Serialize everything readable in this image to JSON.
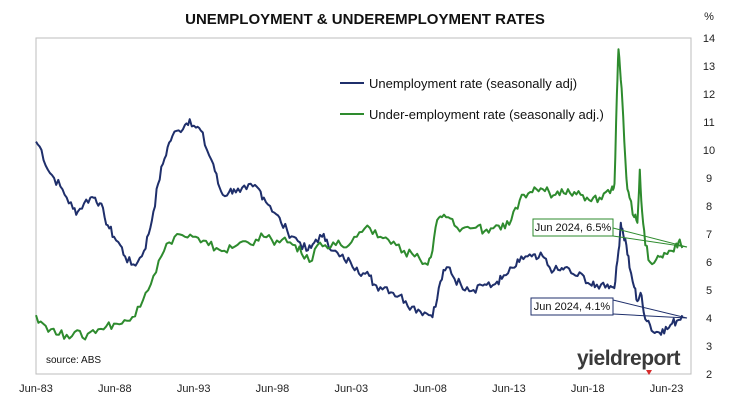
{
  "chart_data": {
    "type": "line",
    "title": "UNEMPLOYMENT & UNDEREMPLOYMENT RATES",
    "y_unit_label": "%",
    "ylim": [
      2,
      14
    ],
    "y_ticks": [
      "2",
      "3",
      "4",
      "5",
      "6",
      "7",
      "8",
      "9",
      "10",
      "11",
      "12",
      "13",
      "14"
    ],
    "xlim": [
      1983.45,
      2025.0
    ],
    "x_ticks": [
      {
        "label": "Jun-83",
        "x": 1983.45
      },
      {
        "label": "Jun-88",
        "x": 1988.45
      },
      {
        "label": "Jun-93",
        "x": 1993.45
      },
      {
        "label": "Jun-98",
        "x": 1998.45
      },
      {
        "label": "Jun-03",
        "x": 2003.45
      },
      {
        "label": "Jun-08",
        "x": 2008.45
      },
      {
        "label": "Jun-13",
        "x": 2013.45
      },
      {
        "label": "Jun-18",
        "x": 2018.45
      },
      {
        "label": "Jun-23",
        "x": 2023.45
      }
    ],
    "grid": false,
    "legend_position": "top-center",
    "series": [
      {
        "name": "Unemployment rate (seasonally adj)",
        "color": "#1f2f6b",
        "points": [
          [
            1983.45,
            10.3
          ],
          [
            1983.8,
            10.0
          ],
          [
            1984.2,
            9.3
          ],
          [
            1984.6,
            9.0
          ],
          [
            1985.0,
            8.7
          ],
          [
            1985.4,
            8.3
          ],
          [
            1985.8,
            7.9
          ],
          [
            1986.1,
            7.8
          ],
          [
            1986.5,
            8.1
          ],
          [
            1986.9,
            8.3
          ],
          [
            1987.2,
            8.3
          ],
          [
            1987.5,
            8.1
          ],
          [
            1987.8,
            7.6
          ],
          [
            1988.1,
            7.2
          ],
          [
            1988.4,
            6.9
          ],
          [
            1988.8,
            6.6
          ],
          [
            1989.1,
            6.2
          ],
          [
            1989.5,
            5.9
          ],
          [
            1989.9,
            6.0
          ],
          [
            1990.3,
            6.4
          ],
          [
            1990.6,
            7.0
          ],
          [
            1990.9,
            7.8
          ],
          [
            1991.2,
            8.8
          ],
          [
            1991.5,
            9.5
          ],
          [
            1991.8,
            10.1
          ],
          [
            1992.1,
            10.5
          ],
          [
            1992.5,
            10.7
          ],
          [
            1992.9,
            10.9
          ],
          [
            1993.2,
            11.1
          ],
          [
            1993.6,
            10.8
          ],
          [
            1993.9,
            10.7
          ],
          [
            1994.3,
            10.0
          ],
          [
            1994.7,
            9.5
          ],
          [
            1995.0,
            8.8
          ],
          [
            1995.3,
            8.4
          ],
          [
            1995.7,
            8.5
          ],
          [
            1996.0,
            8.6
          ],
          [
            1996.4,
            8.5
          ],
          [
            1996.8,
            8.6
          ],
          [
            1997.2,
            8.7
          ],
          [
            1997.6,
            8.6
          ],
          [
            1997.9,
            8.3
          ],
          [
            1998.3,
            8.0
          ],
          [
            1998.7,
            7.7
          ],
          [
            1999.0,
            7.4
          ],
          [
            1999.4,
            7.1
          ],
          [
            1999.8,
            6.9
          ],
          [
            2000.2,
            6.7
          ],
          [
            2000.6,
            6.4
          ],
          [
            2000.9,
            6.5
          ],
          [
            2001.2,
            6.8
          ],
          [
            2001.6,
            6.9
          ],
          [
            2001.9,
            6.8
          ],
          [
            2002.3,
            6.4
          ],
          [
            2002.7,
            6.2
          ],
          [
            2003.0,
            6.1
          ],
          [
            2003.4,
            6.0
          ],
          [
            2003.8,
            5.8
          ],
          [
            2004.2,
            5.6
          ],
          [
            2004.6,
            5.5
          ],
          [
            2004.9,
            5.2
          ],
          [
            2005.3,
            5.1
          ],
          [
            2005.7,
            5.1
          ],
          [
            2006.1,
            4.9
          ],
          [
            2006.5,
            4.8
          ],
          [
            2006.9,
            4.6
          ],
          [
            2007.3,
            4.4
          ],
          [
            2007.7,
            4.3
          ],
          [
            2008.1,
            4.2
          ],
          [
            2008.5,
            4.1
          ],
          [
            2008.8,
            4.4
          ],
          [
            2009.1,
            5.3
          ],
          [
            2009.4,
            5.7
          ],
          [
            2009.7,
            5.8
          ],
          [
            2010.0,
            5.4
          ],
          [
            2010.4,
            5.2
          ],
          [
            2010.8,
            5.1
          ],
          [
            2011.2,
            5.0
          ],
          [
            2011.6,
            5.2
          ],
          [
            2011.9,
            5.2
          ],
          [
            2012.3,
            5.1
          ],
          [
            2012.7,
            5.3
          ],
          [
            2013.0,
            5.4
          ],
          [
            2013.4,
            5.6
          ],
          [
            2013.8,
            5.8
          ],
          [
            2014.1,
            6.0
          ],
          [
            2014.5,
            6.2
          ],
          [
            2014.9,
            6.2
          ],
          [
            2015.2,
            6.1
          ],
          [
            2015.6,
            6.2
          ],
          [
            2015.9,
            5.9
          ],
          [
            2016.3,
            5.7
          ],
          [
            2016.7,
            5.7
          ],
          [
            2017.0,
            5.8
          ],
          [
            2017.4,
            5.6
          ],
          [
            2017.8,
            5.5
          ],
          [
            2018.2,
            5.5
          ],
          [
            2018.6,
            5.2
          ],
          [
            2018.9,
            5.1
          ],
          [
            2019.3,
            5.2
          ],
          [
            2019.7,
            5.2
          ],
          [
            2020.0,
            5.1
          ],
          [
            2020.2,
            5.3
          ],
          [
            2020.4,
            6.4
          ],
          [
            2020.55,
            7.4
          ],
          [
            2020.7,
            7.0
          ],
          [
            2020.9,
            6.6
          ],
          [
            2021.1,
            5.8
          ],
          [
            2021.4,
            5.1
          ],
          [
            2021.6,
            4.6
          ],
          [
            2021.8,
            4.9
          ],
          [
            2022.0,
            4.2
          ],
          [
            2022.3,
            3.9
          ],
          [
            2022.6,
            3.5
          ],
          [
            2022.9,
            3.5
          ],
          [
            2023.2,
            3.6
          ],
          [
            2023.5,
            3.6
          ],
          [
            2023.8,
            3.8
          ],
          [
            2024.1,
            3.9
          ],
          [
            2024.45,
            4.1
          ]
        ]
      },
      {
        "name": "Under-employment rate (seasonally adj.)",
        "color": "#2e8b2e",
        "points": [
          [
            1983.45,
            4.1
          ],
          [
            1983.9,
            3.8
          ],
          [
            1984.4,
            3.6
          ],
          [
            1984.9,
            3.4
          ],
          [
            1985.4,
            3.4
          ],
          [
            1985.9,
            3.5
          ],
          [
            1986.4,
            3.3
          ],
          [
            1986.9,
            3.5
          ],
          [
            1987.4,
            3.6
          ],
          [
            1987.9,
            3.7
          ],
          [
            1988.4,
            3.8
          ],
          [
            1988.9,
            3.8
          ],
          [
            1989.4,
            3.9
          ],
          [
            1989.9,
            4.4
          ],
          [
            1990.4,
            4.9
          ],
          [
            1990.9,
            5.5
          ],
          [
            1991.4,
            6.2
          ],
          [
            1991.9,
            6.7
          ],
          [
            1992.4,
            7.0
          ],
          [
            1992.9,
            6.9
          ],
          [
            1993.4,
            6.9
          ],
          [
            1993.9,
            6.7
          ],
          [
            1994.4,
            6.6
          ],
          [
            1994.9,
            6.5
          ],
          [
            1995.4,
            6.4
          ],
          [
            1995.9,
            6.5
          ],
          [
            1996.4,
            6.7
          ],
          [
            1996.9,
            6.7
          ],
          [
            1997.4,
            6.8
          ],
          [
            1997.9,
            6.9
          ],
          [
            1998.4,
            6.8
          ],
          [
            1998.9,
            6.7
          ],
          [
            1999.4,
            6.7
          ],
          [
            1999.9,
            6.6
          ],
          [
            2000.3,
            6.3
          ],
          [
            2000.8,
            6.0
          ],
          [
            2001.3,
            6.6
          ],
          [
            2001.8,
            6.6
          ],
          [
            2002.3,
            6.7
          ],
          [
            2002.8,
            6.6
          ],
          [
            2003.3,
            6.6
          ],
          [
            2003.8,
            6.9
          ],
          [
            2004.3,
            7.2
          ],
          [
            2004.8,
            7.0
          ],
          [
            2005.3,
            6.9
          ],
          [
            2005.8,
            6.8
          ],
          [
            2006.3,
            6.6
          ],
          [
            2006.8,
            6.4
          ],
          [
            2007.3,
            6.3
          ],
          [
            2007.8,
            6.1
          ],
          [
            2008.3,
            5.9
          ],
          [
            2008.6,
            6.4
          ],
          [
            2008.9,
            7.5
          ],
          [
            2009.2,
            7.6
          ],
          [
            2009.6,
            7.6
          ],
          [
            2010.0,
            7.3
          ],
          [
            2010.5,
            7.2
          ],
          [
            2011.0,
            7.2
          ],
          [
            2011.5,
            7.3
          ],
          [
            2011.9,
            7.1
          ],
          [
            2012.3,
            7.2
          ],
          [
            2012.8,
            7.3
          ],
          [
            2013.2,
            7.2
          ],
          [
            2013.6,
            7.5
          ],
          [
            2014.0,
            7.9
          ],
          [
            2014.4,
            8.4
          ],
          [
            2014.8,
            8.5
          ],
          [
            2015.2,
            8.6
          ],
          [
            2015.6,
            8.6
          ],
          [
            2016.0,
            8.5
          ],
          [
            2016.4,
            8.4
          ],
          [
            2016.8,
            8.6
          ],
          [
            2017.2,
            8.6
          ],
          [
            2017.6,
            8.5
          ],
          [
            2018.0,
            8.4
          ],
          [
            2018.4,
            8.3
          ],
          [
            2018.8,
            8.3
          ],
          [
            2019.2,
            8.3
          ],
          [
            2019.6,
            8.5
          ],
          [
            2020.0,
            8.7
          ],
          [
            2020.15,
            8.8
          ],
          [
            2020.3,
            12.0
          ],
          [
            2020.4,
            13.6
          ],
          [
            2020.55,
            12.5
          ],
          [
            2020.7,
            11.2
          ],
          [
            2020.9,
            9.0
          ],
          [
            2021.1,
            8.3
          ],
          [
            2021.4,
            7.6
          ],
          [
            2021.6,
            7.4
          ],
          [
            2021.75,
            9.3
          ],
          [
            2021.9,
            7.8
          ],
          [
            2022.1,
            6.6
          ],
          [
            2022.4,
            6.0
          ],
          [
            2022.8,
            6.1
          ],
          [
            2023.1,
            6.2
          ],
          [
            2023.4,
            6.3
          ],
          [
            2023.7,
            6.4
          ],
          [
            2024.0,
            6.6
          ],
          [
            2024.2,
            6.7
          ],
          [
            2024.45,
            6.5
          ]
        ]
      }
    ],
    "annotations": [
      {
        "text": "Jun 2024, 6.5%",
        "series": 1,
        "x": 2024.45,
        "y": 6.5
      },
      {
        "text": "Jun 2024, 4.1%",
        "series": 0,
        "x": 2024.45,
        "y": 4.1
      }
    ],
    "source_note": "source: ABS"
  },
  "logo_text": "yieldreport"
}
